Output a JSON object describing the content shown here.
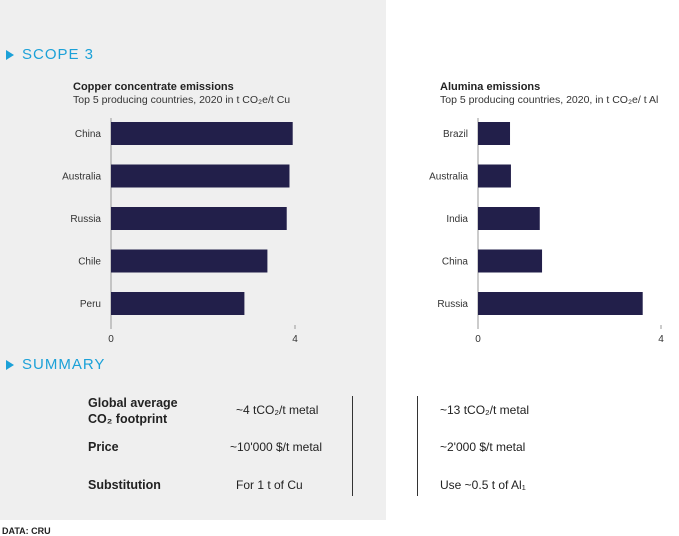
{
  "scope3": {
    "label": "SCOPE 3"
  },
  "summary": {
    "label": "SUMMARY",
    "rows": [
      {
        "label_line1": "Global average",
        "label_line2": "CO₂ footprint",
        "copper": "~4 tCO₂/t metal",
        "aluminium": "~13 tCO₂/t metal"
      },
      {
        "label_line1": "Price",
        "label_line2": "",
        "copper": "~10'000 $/t metal",
        "aluminium": "~2'000 $/t metal"
      },
      {
        "label_line1": "Substitution",
        "label_line2": "",
        "copper": "For 1 t of Cu",
        "aluminium": "Use ~0.5 t of Al₁"
      }
    ]
  },
  "source": "DATA: CRU",
  "colors": {
    "accent": "#1ba1d8",
    "bar": "#221f4a",
    "panel": "#efefef"
  },
  "chart_data": [
    {
      "type": "bar",
      "orientation": "horizontal",
      "title": "Copper concentrate emissions",
      "subtitle": "Top 5 producing countries, 2020 in t CO₂e/t Cu",
      "categories": [
        "China",
        "Australia",
        "Russia",
        "Chile",
        "Peru"
      ],
      "values": [
        3.95,
        3.88,
        3.82,
        3.4,
        2.9
      ],
      "xlim": [
        0,
        4
      ],
      "xticks": [
        "0",
        "4"
      ],
      "grid": false
    },
    {
      "type": "bar",
      "orientation": "horizontal",
      "title": "Alumina emissions",
      "subtitle": "Top 5 producing countries, 2020, in t CO₂e/ t Al",
      "categories": [
        "Brazil",
        "Australia",
        "India",
        "China",
        "Russia"
      ],
      "values": [
        0.7,
        0.72,
        1.35,
        1.4,
        3.6
      ],
      "xlim": [
        0,
        4
      ],
      "xticks": [
        "0",
        "4"
      ],
      "grid": false
    }
  ]
}
